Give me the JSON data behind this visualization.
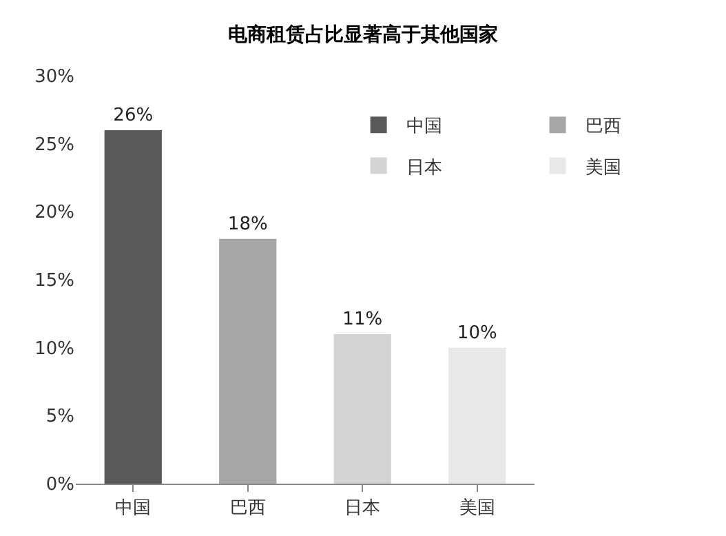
{
  "chart_data": {
    "type": "bar",
    "title": "电商租赁占比显著高于其他国家",
    "categories": [
      "中国",
      "巴西",
      "日本",
      "美国"
    ],
    "series": [
      {
        "name": "中国",
        "color": "#595959",
        "values": [
          26,
          null,
          null,
          null
        ],
        "value_labels": [
          "26%",
          null,
          null,
          null
        ]
      },
      {
        "name": "巴西",
        "color": "#a6a6a6",
        "values": [
          null,
          18,
          null,
          null
        ],
        "value_labels": [
          null,
          "18%",
          null,
          null
        ]
      },
      {
        "name": "日本",
        "color": "#d4d4d4",
        "values": [
          null,
          null,
          11,
          null
        ],
        "value_labels": [
          null,
          null,
          "11%",
          null
        ]
      },
      {
        "name": "美国",
        "color": "#e8e8e8",
        "values": [
          null,
          null,
          null,
          10
        ],
        "value_labels": [
          null,
          null,
          null,
          "10%"
        ]
      }
    ],
    "ylim": [
      0,
      30
    ],
    "yticks": [
      {
        "value": 0,
        "label": "0%"
      },
      {
        "value": 5,
        "label": "5%"
      },
      {
        "value": 10,
        "label": "10%"
      },
      {
        "value": 15,
        "label": "15%"
      },
      {
        "value": 20,
        "label": "20%"
      },
      {
        "value": 25,
        "label": "25%"
      },
      {
        "value": 30,
        "label": "30%"
      }
    ],
    "legend": "top right"
  }
}
